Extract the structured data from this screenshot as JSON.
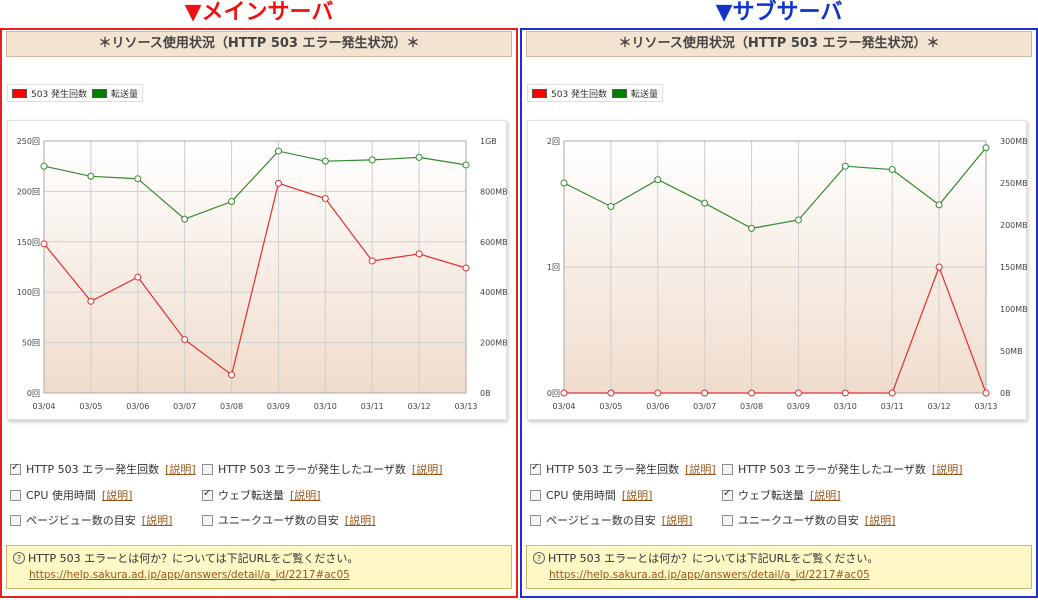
{
  "headings": {
    "main": "▼メインサーバ",
    "sub": "▼サブサーバ"
  },
  "panel_title": "＊リソース使用状況（HTTP 503 エラー発生状況）＊",
  "legend": [
    {
      "label": "503 発生回数",
      "color": "#ff0000"
    },
    {
      "label": "転送量",
      "color": "#008000"
    }
  ],
  "options": [
    {
      "label": "HTTP 503 エラー発生回数",
      "checked": true,
      "help": "[説明]"
    },
    {
      "label": "HTTP 503 エラーが発生したユーザ数",
      "checked": false,
      "help": "[説明]"
    },
    {
      "label": "CPU 使用時間",
      "checked": false,
      "help": "[説明]"
    },
    {
      "label": "ウェブ転送量",
      "checked": true,
      "help": "[説明]"
    },
    {
      "label": "ページビュー数の目安",
      "checked": false,
      "help": "[説明]"
    },
    {
      "label": "ユニークユーザ数の目安",
      "checked": false,
      "help": "[説明]"
    }
  ],
  "info": {
    "icon": "question-bubble-icon",
    "text": "HTTP 503 エラーとは何か？については下記URLをご覧ください。",
    "url": "https://help.sakura.ad.jp/app/answers/detail/a_id/2217#ac05"
  },
  "chart_data": [
    {
      "type": "line",
      "categories": [
        "03/04",
        "03/05",
        "03/06",
        "03/07",
        "03/08",
        "03/09",
        "03/10",
        "03/11",
        "03/12",
        "03/13"
      ],
      "series": [
        {
          "name": "503 発生回数",
          "axis": "left",
          "color": "#e03030",
          "values": [
            148,
            91,
            115,
            53,
            18,
            208,
            193,
            131,
            138,
            124
          ]
        },
        {
          "name": "転送量",
          "axis": "right",
          "color": "#338833",
          "values": [
            900,
            860,
            850,
            690,
            760,
            960,
            920,
            925,
            935,
            905
          ]
        }
      ],
      "left_ticks": [
        "250回",
        "200回",
        "150回",
        "100回",
        "50回",
        "0回"
      ],
      "left_range": [
        0,
        250
      ],
      "right_ticks": [
        "1GB",
        "800MB",
        "600MB",
        "400MB",
        "200MB",
        "0B"
      ],
      "right_range": [
        0,
        1000
      ],
      "grid": true
    },
    {
      "type": "line",
      "categories": [
        "03/04",
        "03/05",
        "03/06",
        "03/07",
        "03/08",
        "03/09",
        "03/10",
        "03/11",
        "03/12",
        "03/13"
      ],
      "series": [
        {
          "name": "503 発生回数",
          "axis": "left",
          "color": "#e03030",
          "values": [
            0,
            0,
            0,
            0,
            0,
            0,
            0,
            0,
            1,
            0
          ]
        },
        {
          "name": "転送量",
          "axis": "right",
          "color": "#338833",
          "values": [
            250,
            222,
            254,
            226,
            196,
            206,
            270,
            266,
            224,
            292
          ]
        }
      ],
      "left_ticks": [
        "2回",
        "1回",
        "0回"
      ],
      "left_range": [
        0,
        2
      ],
      "right_ticks": [
        "300MB",
        "250MB",
        "200MB",
        "150MB",
        "100MB",
        "50MB",
        "0B"
      ],
      "right_range": [
        0,
        300
      ],
      "grid": true
    }
  ]
}
